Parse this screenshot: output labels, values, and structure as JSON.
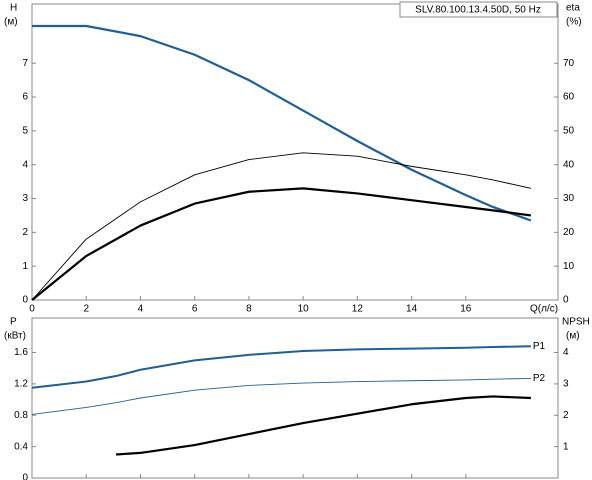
{
  "chart_data": [
    {
      "type": "line",
      "title": "SLV.80.100.13.4.50D, 50 Hz",
      "y_label": "H",
      "y_unit": "(м)",
      "y2_label": "eta",
      "y2_unit": "(%)",
      "x_label": "Q(л/с)",
      "x": [
        0,
        2,
        4,
        6,
        8,
        10,
        12,
        14,
        16,
        17,
        18.4
      ],
      "xlim": [
        0,
        19.4
      ],
      "xticks": [
        0,
        2,
        4,
        6,
        8,
        10,
        12,
        14,
        16
      ],
      "ylim": [
        0,
        8.75
      ],
      "yticks": [
        0,
        1,
        2,
        3,
        4,
        5,
        6,
        7
      ],
      "y2lim": [
        0,
        87.5
      ],
      "y2ticks": [
        0,
        10,
        20,
        30,
        40,
        50,
        60,
        70
      ],
      "series": [
        {
          "color": "#1f5f96",
          "line_width": 2.2,
          "values": [
            8.1,
            8.1,
            7.8,
            7.25,
            6.5,
            5.6,
            4.7,
            3.85,
            3.1,
            2.75,
            2.35
          ]
        },
        {
          "color": "#000000",
          "line_width": 0.9,
          "axis": "y2",
          "values": [
            0,
            18,
            29,
            37,
            41.5,
            43.5,
            42.5,
            39.5,
            37,
            35.5,
            33
          ]
        },
        {
          "color": "#000000",
          "line_width": 2.2,
          "axis": "y2",
          "values": [
            0,
            13,
            22,
            28.5,
            32,
            33,
            31.5,
            29.5,
            27.5,
            26.5,
            25
          ]
        }
      ]
    },
    {
      "type": "line",
      "y_label": "P",
      "y_unit": "(кВт)",
      "y2_label": "NPSH",
      "y2_unit": "(м)",
      "x": [
        0,
        2,
        3.1,
        4,
        6,
        8,
        10,
        12,
        14,
        16,
        17,
        18.4
      ],
      "xlim": [
        0,
        19.4
      ],
      "xticks": [
        0,
        2,
        4,
        6,
        8,
        10,
        12,
        14,
        16
      ],
      "ylim": [
        0,
        2.04
      ],
      "yticks": [
        0,
        0.4,
        0.8,
        1.2,
        1.6
      ],
      "y2lim": [
        0,
        5.1
      ],
      "y2ticks": [
        1,
        2,
        3,
        4
      ],
      "series": [
        {
          "name": "P1",
          "color": "#1f5f96",
          "line_width": 2,
          "values": [
            1.15,
            1.23,
            1.3,
            1.38,
            1.5,
            1.57,
            1.62,
            1.64,
            1.65,
            1.66,
            1.67,
            1.68
          ]
        },
        {
          "name": "P2",
          "color": "#1f5f96",
          "line_width": 0.9,
          "values": [
            0.81,
            0.9,
            0.96,
            1.02,
            1.12,
            1.18,
            1.21,
            1.23,
            1.24,
            1.25,
            1.26,
            1.27
          ]
        },
        {
          "color": "#000000",
          "line_width": 2.2,
          "axis": "y2",
          "values": [
            null,
            null,
            0.75,
            0.8,
            1.05,
            1.4,
            1.75,
            2.05,
            2.35,
            2.55,
            2.6,
            2.55
          ]
        }
      ]
    }
  ]
}
